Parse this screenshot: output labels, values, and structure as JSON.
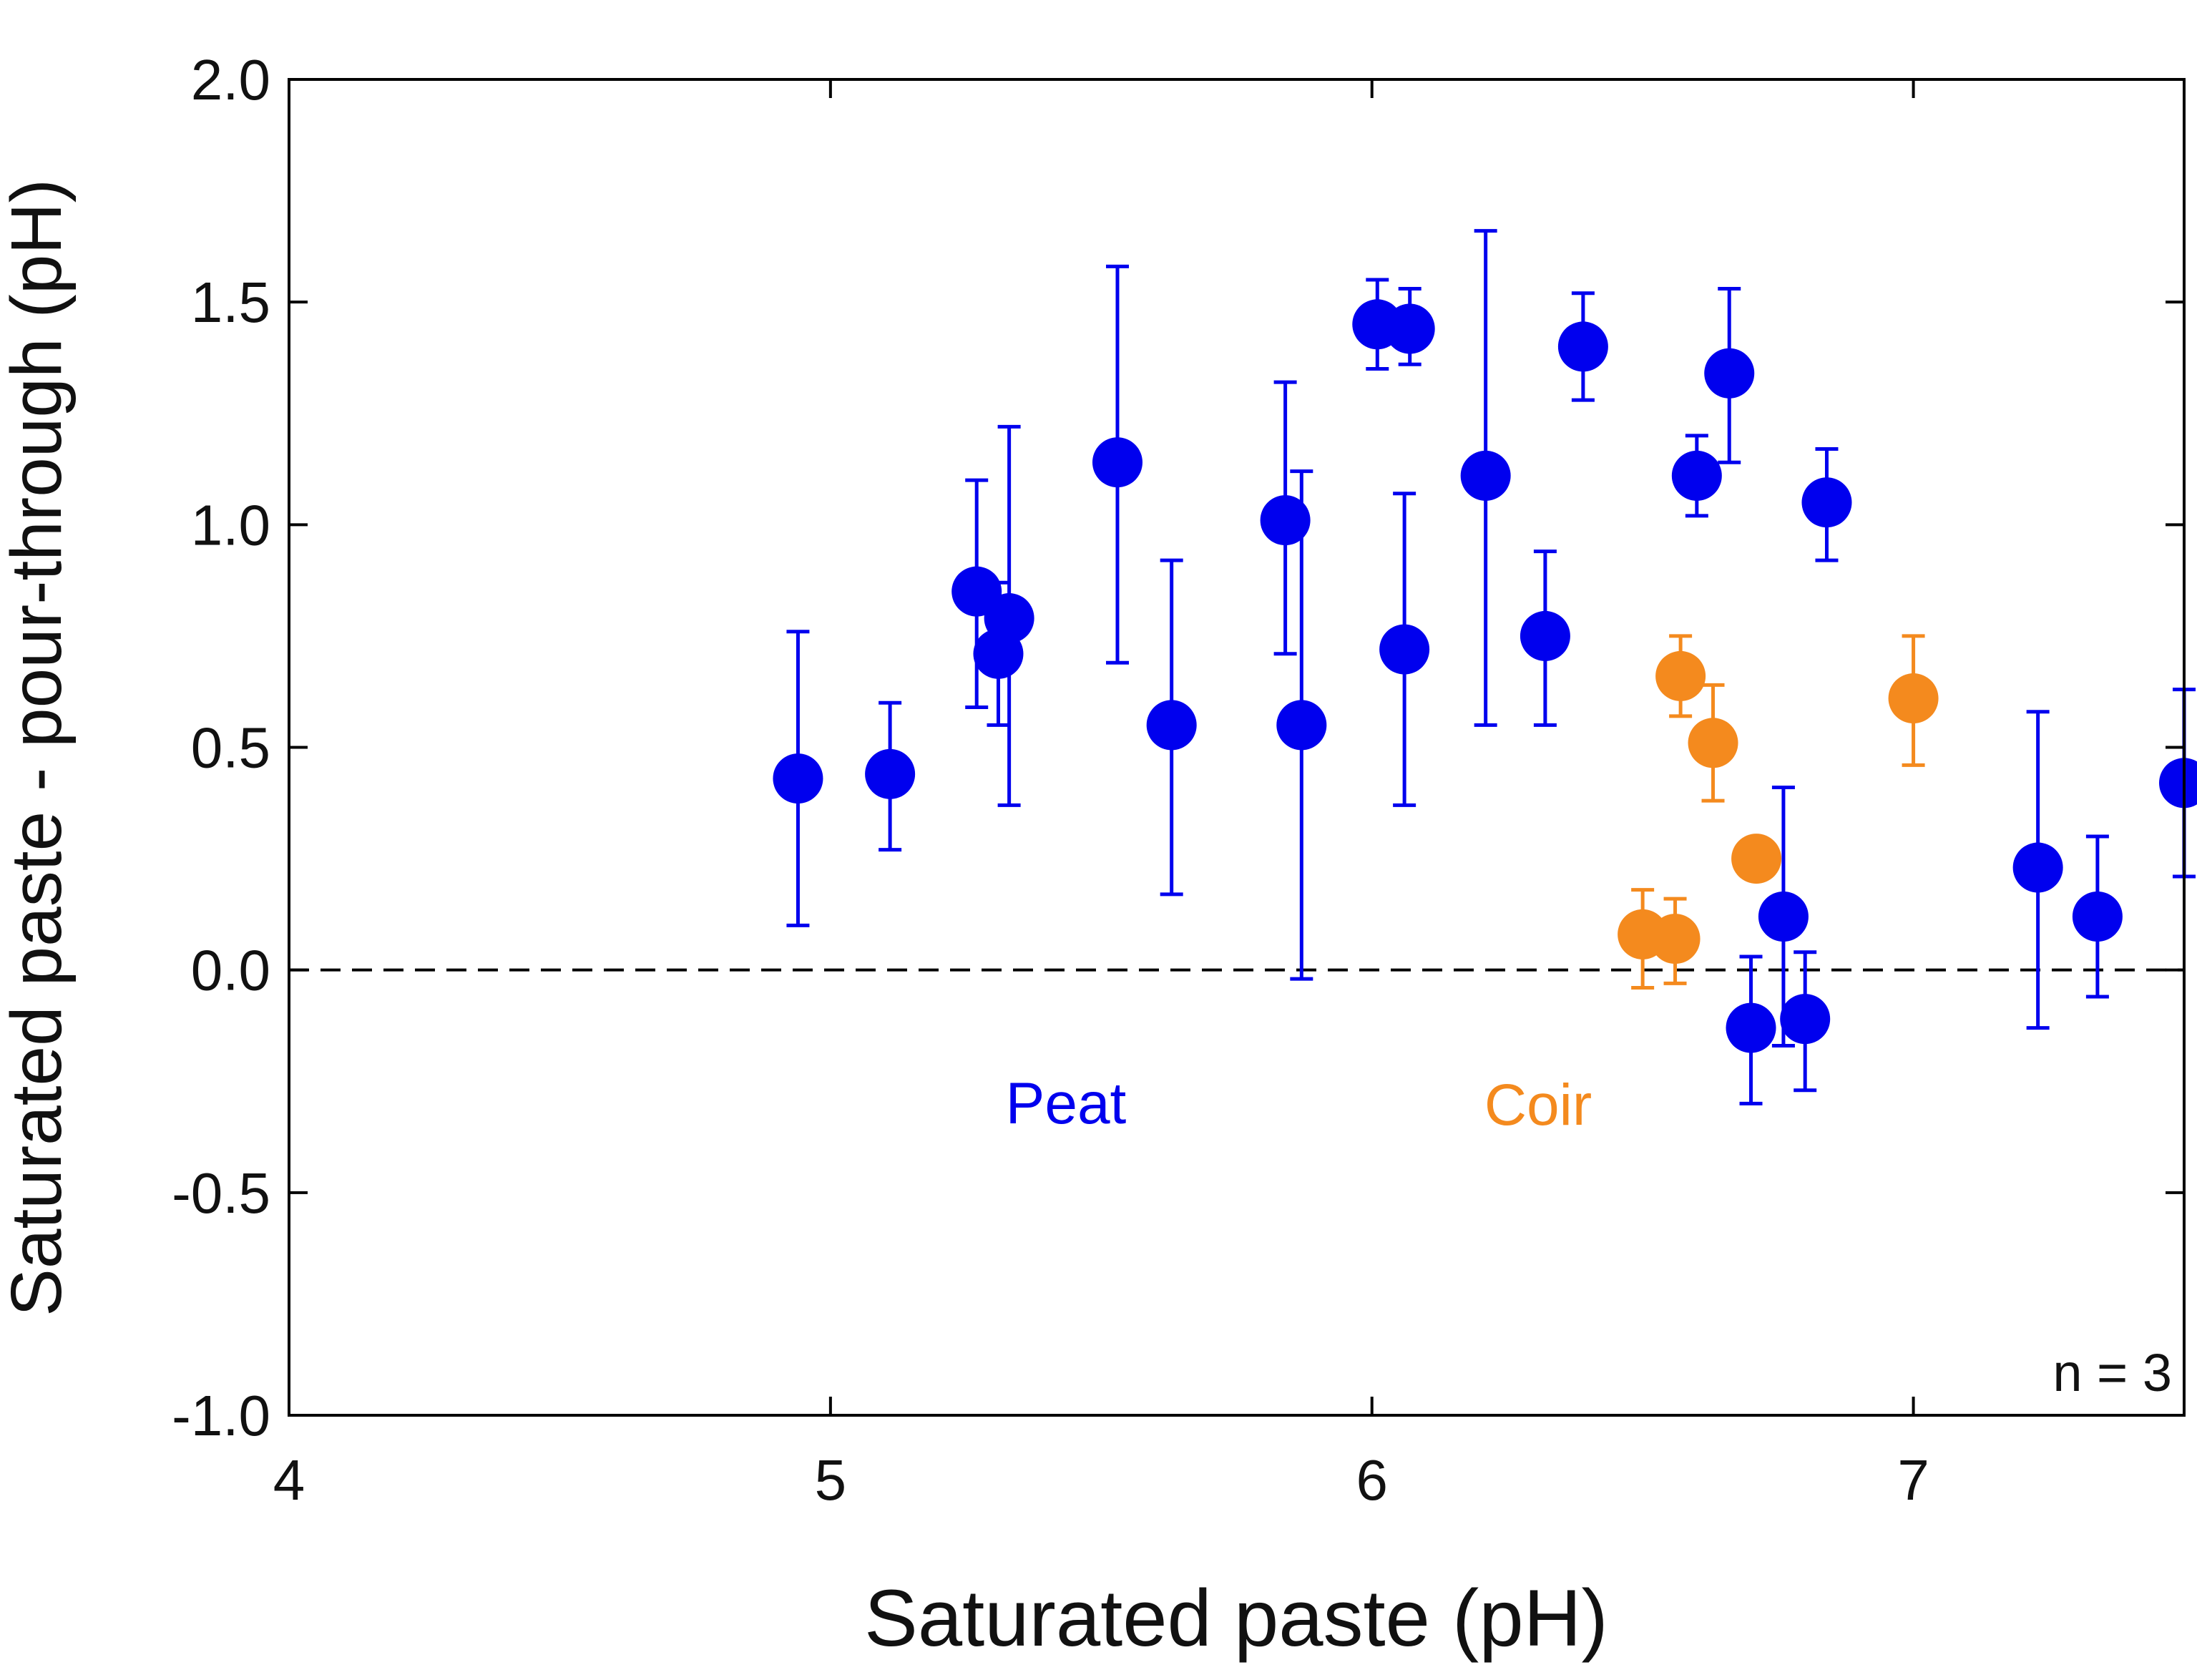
{
  "colors": {
    "peat": "#0000ee",
    "coir": "#f48a1e",
    "axis": "#000000",
    "reference_line": "#000000"
  },
  "chart_data": {
    "type": "scatter",
    "title": "",
    "xlabel": "Saturated paste (pH)",
    "ylabel": "Saturated paste - pour-through (pH)",
    "xlim": [
      4,
      7.5
    ],
    "ylim": [
      -1.0,
      2.0
    ],
    "xticks": [
      4,
      5,
      6,
      7
    ],
    "xtick_labels": [
      "4",
      "5",
      "6",
      "7"
    ],
    "yticks": [
      -1.0,
      -0.5,
      0.0,
      0.5,
      1.0,
      1.5,
      2.0
    ],
    "ytick_labels": [
      "-1.0",
      "-0.5",
      "0.0",
      "0.5",
      "1.0",
      "1.5",
      "2.0"
    ],
    "grid": false,
    "reference_line": {
      "y": 0.0,
      "style": "dashed"
    },
    "annotations": [
      {
        "text": "Peat",
        "series": "Peat"
      },
      {
        "text": "Coir",
        "series": "Coir"
      },
      {
        "text": "n = 3",
        "placement": "bottom-right"
      }
    ],
    "series": [
      {
        "name": "Peat",
        "color": "#0000ee",
        "points": [
          {
            "x": 4.94,
            "y": 0.43,
            "lo": 0.1,
            "hi": 0.76
          },
          {
            "x": 5.11,
            "y": 0.44,
            "lo": 0.27,
            "hi": 0.6
          },
          {
            "x": 5.27,
            "y": 0.85,
            "lo": 0.59,
            "hi": 1.1
          },
          {
            "x": 5.31,
            "y": 0.71,
            "lo": 0.55,
            "hi": 0.87
          },
          {
            "x": 5.33,
            "y": 0.79,
            "lo": 0.37,
            "hi": 1.22
          },
          {
            "x": 5.53,
            "y": 1.14,
            "lo": 0.69,
            "hi": 1.58
          },
          {
            "x": 5.63,
            "y": 0.55,
            "lo": 0.17,
            "hi": 0.92
          },
          {
            "x": 5.84,
            "y": 1.01,
            "lo": 0.71,
            "hi": 1.32
          },
          {
            "x": 5.87,
            "y": 0.55,
            "lo": -0.02,
            "hi": 1.12
          },
          {
            "x": 6.01,
            "y": 1.45,
            "lo": 1.35,
            "hi": 1.55
          },
          {
            "x": 6.06,
            "y": 0.72,
            "lo": 0.37,
            "hi": 1.07
          },
          {
            "x": 6.07,
            "y": 1.44,
            "lo": 1.36,
            "hi": 1.53
          },
          {
            "x": 6.21,
            "y": 1.11,
            "lo": 0.55,
            "hi": 1.66
          },
          {
            "x": 6.32,
            "y": 0.75,
            "lo": 0.55,
            "hi": 0.94
          },
          {
            "x": 6.39,
            "y": 1.4,
            "lo": 1.28,
            "hi": 1.52
          },
          {
            "x": 6.6,
            "y": 1.11,
            "lo": 1.02,
            "hi": 1.2
          },
          {
            "x": 6.66,
            "y": 1.34,
            "lo": 1.14,
            "hi": 1.53
          },
          {
            "x": 6.7,
            "y": -0.13,
            "lo": -0.3,
            "hi": 0.03
          },
          {
            "x": 6.76,
            "y": 0.12,
            "lo": -0.17,
            "hi": 0.41
          },
          {
            "x": 6.8,
            "y": -0.11,
            "lo": -0.27,
            "hi": 0.04
          },
          {
            "x": 6.84,
            "y": 1.05,
            "lo": 0.92,
            "hi": 1.17
          },
          {
            "x": 7.23,
            "y": 0.23,
            "lo": -0.13,
            "hi": 0.58
          },
          {
            "x": 7.34,
            "y": 0.12,
            "lo": -0.06,
            "hi": 0.3
          },
          {
            "x": 7.5,
            "y": 0.42,
            "lo": 0.21,
            "hi": 0.63
          }
        ]
      },
      {
        "name": "Coir",
        "color": "#f48a1e",
        "points": [
          {
            "x": 6.5,
            "y": 0.08,
            "lo": -0.04,
            "hi": 0.18
          },
          {
            "x": 6.56,
            "y": 0.07,
            "lo": -0.03,
            "hi": 0.16
          },
          {
            "x": 6.57,
            "y": 0.66,
            "lo": 0.57,
            "hi": 0.75
          },
          {
            "x": 6.63,
            "y": 0.51,
            "lo": 0.38,
            "hi": 0.64
          },
          {
            "x": 6.71,
            "y": 0.25,
            "lo": 0.25,
            "hi": 0.25
          },
          {
            "x": 7.0,
            "y": 0.61,
            "lo": 0.46,
            "hi": 0.75
          }
        ]
      }
    ]
  }
}
